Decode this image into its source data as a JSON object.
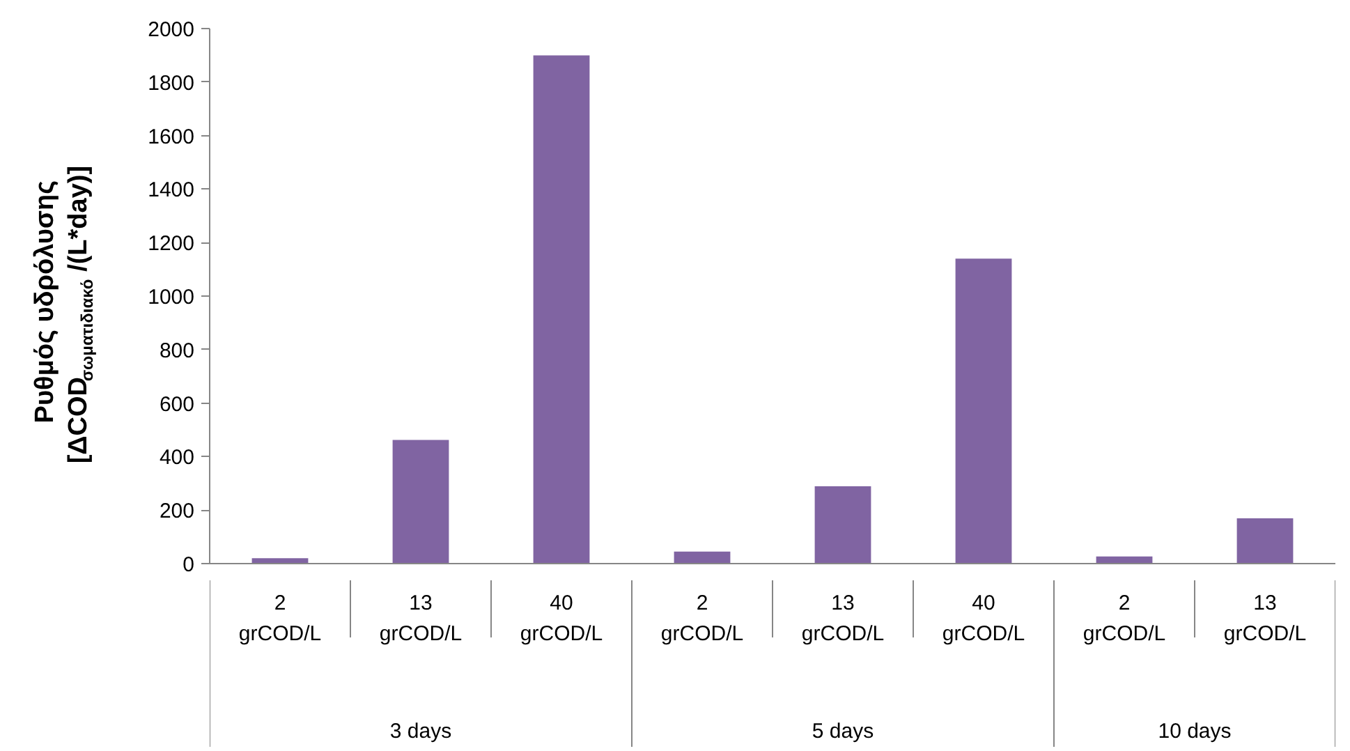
{
  "chart_data": {
    "type": "bar",
    "ylabel": "Ρυθμός υδρόλυσης\n[ΔCOD$_{σωματιδιακό}$/(L*day)]",
    "categories": [
      "2 grCOD/L",
      "13 grCOD/L",
      "40 grCOD/L",
      "2 grCOD/L",
      "13 grCOD/L",
      "40 grCOD/L",
      "2 grCOD/L",
      "13 grCOD/L"
    ],
    "annotations": [
      "3 days",
      "5 days",
      "10 days"
    ],
    "values": [
      20,
      462,
      1900,
      45,
      289,
      1140,
      27,
      169
    ],
    "color": "#8064a2",
    "ylim": [
      0,
      2000
    ],
    "yticks": [
      0,
      200,
      400,
      600,
      800,
      1000,
      1200,
      1400,
      1600,
      1800,
      2000
    ],
    "grid": false
  }
}
